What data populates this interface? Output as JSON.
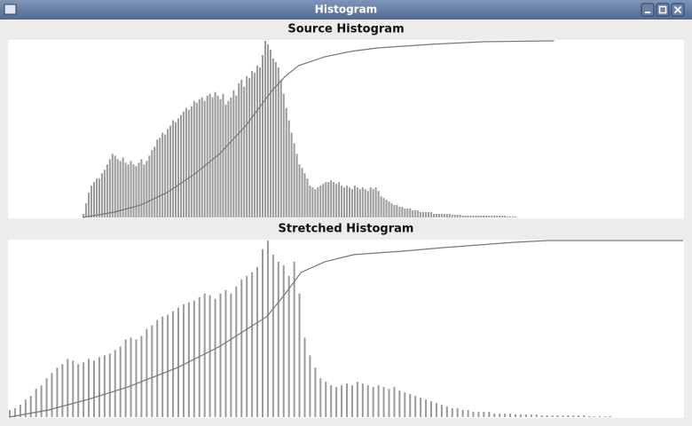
{
  "window_title": "Histogram",
  "chart_data": [
    {
      "type": "bar",
      "title": "Source Histogram",
      "color": "#9a9a9a",
      "ylim": [
        0,
        100
      ],
      "xlim": [
        0,
        256
      ],
      "values": [
        0,
        0,
        0,
        0,
        0,
        0,
        0,
        0,
        0,
        0,
        0,
        0,
        0,
        0,
        0,
        0,
        0,
        0,
        0,
        0,
        0,
        0,
        0,
        0,
        0,
        0,
        0,
        0,
        2,
        8,
        14,
        18,
        20,
        22,
        22,
        25,
        27,
        30,
        33,
        36,
        35,
        33,
        32,
        34,
        31,
        30,
        32,
        30,
        29,
        31,
        33,
        30,
        32,
        35,
        38,
        40,
        44,
        45,
        48,
        47,
        50,
        52,
        55,
        54,
        56,
        58,
        60,
        62,
        61,
        63,
        66,
        65,
        67,
        68,
        66,
        69,
        70,
        68,
        71,
        69,
        67,
        70,
        64,
        66,
        68,
        72,
        69,
        76,
        78,
        74,
        80,
        79,
        83,
        82,
        86,
        85,
        92,
        100,
        98,
        95,
        90,
        88,
        85,
        78,
        70,
        62,
        55,
        48,
        42,
        36,
        30,
        28,
        25,
        22,
        18,
        17,
        16,
        17,
        18,
        19,
        20,
        20,
        21,
        20,
        19,
        20,
        18,
        17,
        18,
        17,
        16,
        18,
        17,
        16,
        17,
        16,
        15,
        17,
        16,
        17,
        15,
        12,
        11,
        10,
        9,
        8,
        7,
        7,
        6,
        6,
        5,
        5,
        5,
        4,
        4,
        4,
        3,
        3,
        3,
        3,
        3,
        2,
        2,
        2,
        2,
        2,
        2,
        2,
        1.5,
        1.5,
        1.5,
        1.5,
        1,
        1,
        1,
        1,
        1,
        1,
        1,
        1,
        1,
        1,
        1,
        1,
        1,
        1,
        1,
        1,
        1,
        0.5,
        0.5,
        0.5,
        0.5,
        0,
        0,
        0,
        0,
        0,
        0,
        0,
        0,
        0,
        0,
        0,
        0,
        0,
        0,
        0,
        0,
        0,
        0,
        0,
        0,
        0,
        0,
        0,
        0,
        0,
        0,
        0,
        0,
        0,
        0,
        0,
        0,
        0,
        0,
        0,
        0,
        0,
        0,
        0,
        0,
        0,
        0,
        0,
        0,
        0,
        0,
        0,
        0,
        0,
        0,
        0,
        0,
        0,
        0,
        0,
        0,
        0,
        0,
        0,
        0,
        0,
        0,
        0
      ],
      "cumulative": {
        "color": "#777777",
        "x": [
          28,
          40,
          50,
          60,
          70,
          80,
          90,
          100,
          105,
          110,
          120,
          130,
          140,
          160,
          180,
          207
        ],
        "values": [
          0,
          3,
          7,
          14,
          24,
          36,
          52,
          72,
          80,
          86,
          91,
          94,
          96,
          98,
          99.5,
          100
        ]
      }
    },
    {
      "type": "bar",
      "title": "Stretched Histogram",
      "color": "#9a9a9a",
      "ylim": [
        0,
        100
      ],
      "xlim": [
        0,
        256
      ],
      "values": [
        4,
        0,
        5,
        0,
        7,
        0,
        10,
        0,
        12,
        0,
        16,
        0,
        18,
        0,
        22,
        0,
        25,
        0,
        28,
        0,
        30,
        0,
        33,
        0,
        32,
        0,
        30,
        0,
        31,
        0,
        33,
        0,
        32,
        0,
        34,
        0,
        35,
        0,
        36,
        0,
        38,
        0,
        40,
        0,
        44,
        0,
        45,
        0,
        44,
        0,
        46,
        0,
        50,
        0,
        52,
        0,
        55,
        0,
        57,
        0,
        58,
        0,
        60,
        0,
        62,
        0,
        64,
        0,
        65,
        0,
        66,
        0,
        68,
        0,
        70,
        0,
        69,
        0,
        67,
        0,
        70,
        0,
        72,
        0,
        70,
        0,
        74,
        0,
        78,
        0,
        80,
        0,
        82,
        0,
        85,
        0,
        95,
        0,
        100,
        0,
        92,
        0,
        88,
        0,
        86,
        0,
        80,
        0,
        88,
        0,
        70,
        0,
        45,
        0,
        35,
        0,
        28,
        0,
        22,
        0,
        20,
        0,
        18,
        0,
        17,
        0,
        18,
        0,
        19,
        0,
        18,
        0,
        20,
        0,
        19,
        0,
        18,
        0,
        17,
        0,
        18,
        0,
        17,
        0,
        16,
        0,
        17,
        0,
        15,
        0,
        14,
        0,
        13,
        0,
        12,
        0,
        11,
        0,
        10,
        0,
        9,
        0,
        8,
        0,
        7,
        0,
        6,
        0,
        5,
        0,
        5,
        0,
        4,
        0,
        4,
        0,
        3,
        0,
        3,
        0,
        3,
        0,
        3,
        0,
        2,
        0,
        2,
        0,
        2,
        0,
        2,
        0,
        1.5,
        0,
        1.5,
        0,
        1.5,
        0,
        1.5,
        0,
        1.5,
        0,
        1,
        0,
        1,
        0,
        1,
        0,
        1,
        0,
        1,
        0,
        1,
        0,
        1,
        0,
        1,
        0,
        1,
        0,
        0.5,
        0,
        0.5,
        0,
        0.5,
        0,
        0.5,
        0,
        0.5,
        0,
        0,
        0,
        0,
        0,
        0,
        0,
        0,
        0,
        0,
        0,
        0,
        0,
        0,
        0,
        0,
        0,
        0,
        0,
        0,
        0,
        0,
        0,
        0,
        0,
        0,
        0
      ],
      "cumulative": {
        "color": "#777777",
        "x": [
          0,
          15,
          30,
          45,
          64,
          80,
          98,
          105,
          111,
          120,
          131,
          150,
          165,
          192,
          205,
          256
        ],
        "values": [
          0,
          4,
          10,
          17,
          28,
          40,
          57,
          70,
          82,
          88,
          92,
          94,
          96,
          99,
          100,
          100
        ]
      }
    }
  ]
}
